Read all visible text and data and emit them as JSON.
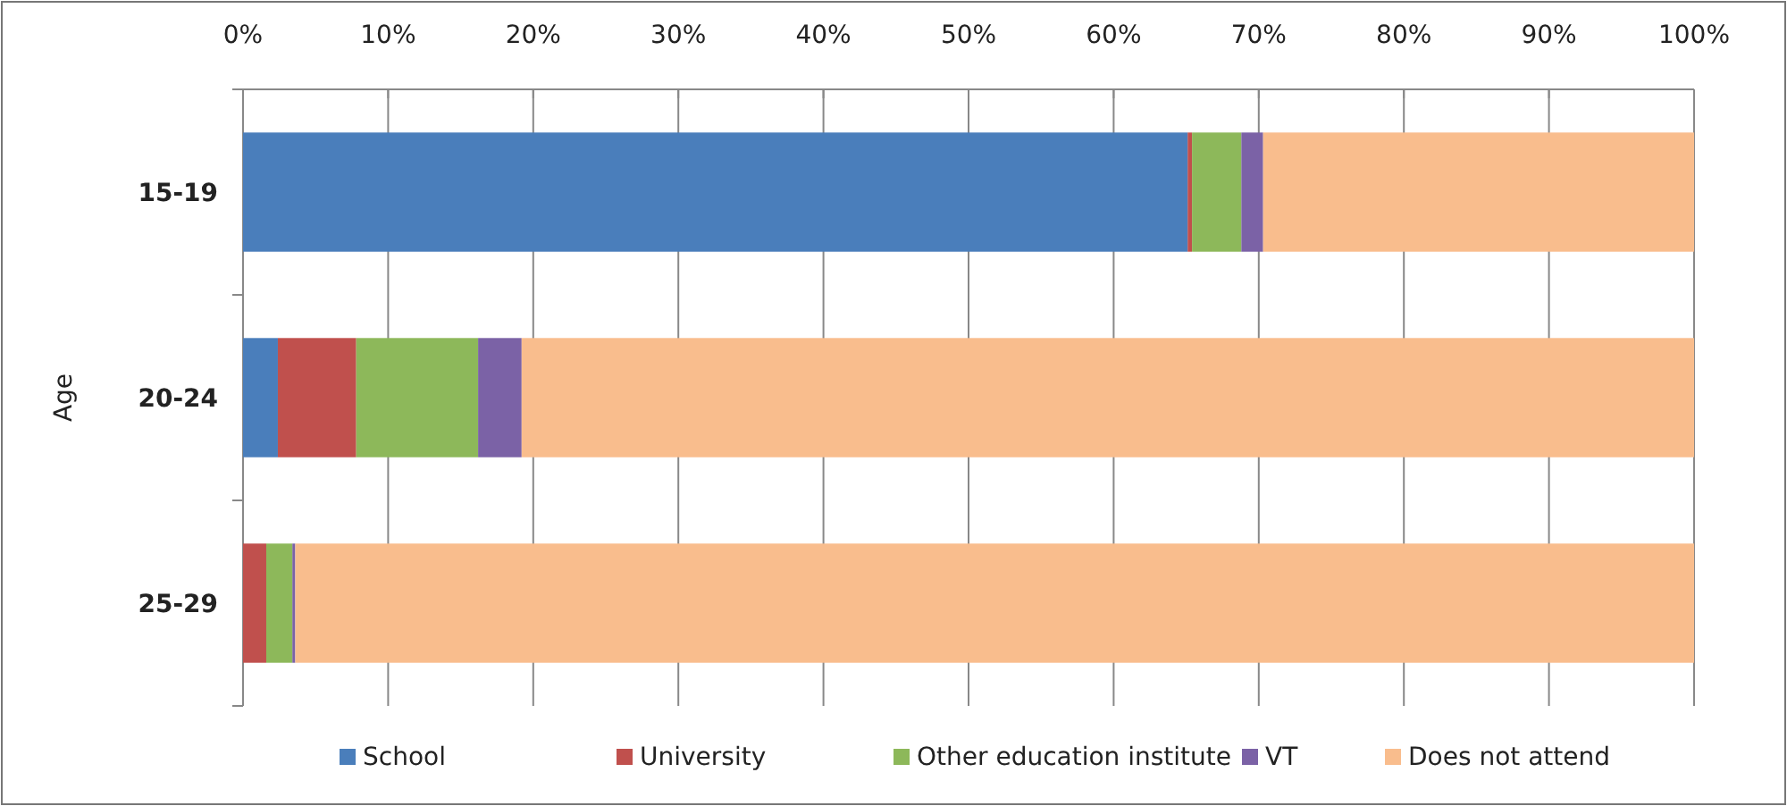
{
  "chart_data": {
    "type": "bar",
    "orientation": "horizontal",
    "stacked": true,
    "ylabel": "Age",
    "categories": [
      "15-19",
      "20-24",
      "25-29"
    ],
    "series": [
      {
        "name": "School",
        "color": "#4a7ebb",
        "values": [
          65.1,
          2.4,
          0
        ]
      },
      {
        "name": "University",
        "color": "#c0504d",
        "values": [
          0.3,
          5.4,
          1.6
        ]
      },
      {
        "name": "Other education institute",
        "color": "#8db85a",
        "values": [
          3.4,
          8.4,
          1.8
        ]
      },
      {
        "name": "VT",
        "color": "#7b62a6",
        "values": [
          1.5,
          3.0,
          0.2
        ]
      },
      {
        "name": "Does not attend",
        "color": "#f9bd8d",
        "values": [
          29.7,
          80.8,
          96.4
        ]
      }
    ],
    "xlim": [
      0,
      100
    ],
    "xticks": [
      {
        "value": 0,
        "label": "0%"
      },
      {
        "value": 10,
        "label": "10%"
      },
      {
        "value": 20,
        "label": "20%"
      },
      {
        "value": 30,
        "label": "30%"
      },
      {
        "value": 40,
        "label": "40%"
      },
      {
        "value": 50,
        "label": "50%"
      },
      {
        "value": 60,
        "label": "60%"
      },
      {
        "value": 70,
        "label": "70%"
      },
      {
        "value": 80,
        "label": "80%"
      },
      {
        "value": 90,
        "label": "90%"
      },
      {
        "value": 100,
        "label": "100%"
      }
    ],
    "grid": "x",
    "legend": "bottom"
  }
}
